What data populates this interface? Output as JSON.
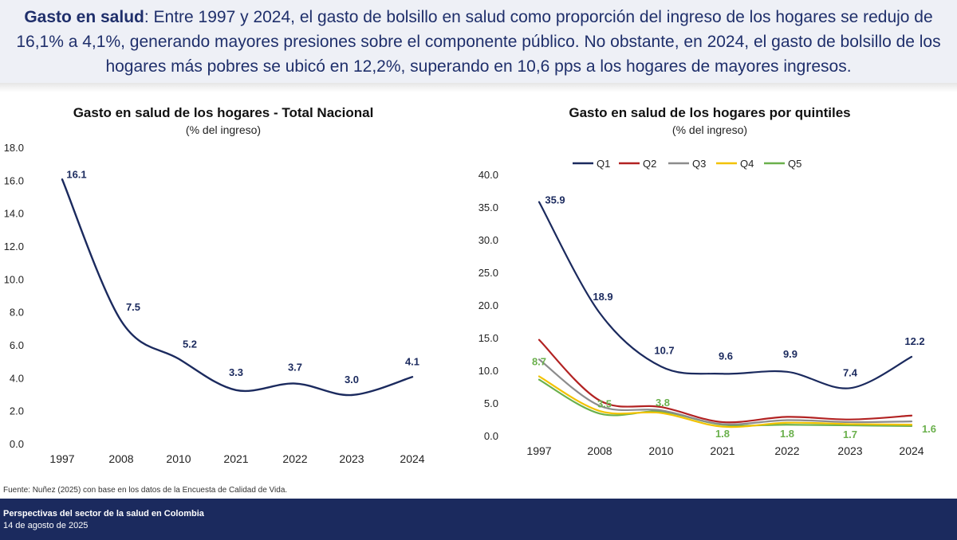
{
  "headline": {
    "bold": "Gasto en salud",
    "text": ": Entre 1997 y 2024, el gasto de bolsillo en salud como proporción del ingreso de los hogares se redujo de 16,1% a 4,1%, generando mayores presiones sobre el componente público. No obstante, en 2024, el gasto de bolsillo de los hogares más pobres se ubicó en 12,2%, superando en 10,6 pps a los hogares de mayores ingresos."
  },
  "source": "Fuente: Nuñez (2025) con base en los datos de la Encuesta de Calidad de Vida.",
  "footer": {
    "title": "Perspectivas del sector de la salud en Colombia",
    "date": "14 de agosto de 2025"
  },
  "chart_data": [
    {
      "type": "line",
      "title": "Gasto en salud de los hogares - Total Nacional",
      "subtitle": "(% del ingreso)",
      "xlabel": "",
      "ylabel": "",
      "categories": [
        "1997",
        "2008",
        "2010",
        "2021",
        "2022",
        "2023",
        "2024"
      ],
      "yticks": [
        "0.0",
        "2.0",
        "4.0",
        "6.0",
        "8.0",
        "10.0",
        "12.0",
        "14.0",
        "16.0",
        "18.0"
      ],
      "ylim": [
        0,
        18
      ],
      "grid": false,
      "series": [
        {
          "name": "Total",
          "color": "#1b2a5e",
          "values": [
            16.1,
            7.5,
            5.2,
            3.3,
            3.7,
            3.0,
            4.1
          ],
          "labels": [
            "16.1",
            "7.5",
            "5.2",
            "3.3",
            "3.7",
            "3.0",
            "4.1"
          ]
        }
      ]
    },
    {
      "type": "line",
      "title": "Gasto en salud de los hogares por quintiles",
      "subtitle": "(% del ingreso)",
      "xlabel": "",
      "ylabel": "",
      "categories": [
        "1997",
        "2008",
        "2010",
        "2021",
        "2022",
        "2023",
        "2024"
      ],
      "yticks": [
        "0.0",
        "5.0",
        "10.0",
        "15.0",
        "20.0",
        "25.0",
        "30.0",
        "35.0",
        "40.0"
      ],
      "ylim": [
        0,
        40
      ],
      "grid": false,
      "legend": "top",
      "series": [
        {
          "name": "Q1",
          "color": "#1b2a5e",
          "values": [
            35.9,
            18.9,
            10.7,
            9.6,
            9.9,
            7.4,
            12.2
          ],
          "labels": [
            "35.9",
            "18.9",
            "10.7",
            "9.6",
            "9.9",
            "7.4",
            "12.2"
          ]
        },
        {
          "name": "Q2",
          "color": "#b22222",
          "values": [
            14.8,
            5.5,
            4.5,
            2.2,
            3.0,
            2.6,
            3.2
          ]
        },
        {
          "name": "Q3",
          "color": "#8c8c8c",
          "values": [
            11.8,
            4.7,
            4.0,
            1.9,
            2.5,
            2.2,
            2.3
          ]
        },
        {
          "name": "Q4",
          "color": "#f2c200",
          "values": [
            9.2,
            3.9,
            3.6,
            1.5,
            2.1,
            1.9,
            1.8
          ]
        },
        {
          "name": "Q5",
          "color": "#6ab04c",
          "values": [
            8.7,
            3.5,
            3.8,
            1.8,
            1.8,
            1.7,
            1.6
          ],
          "labels": [
            "8.7",
            "3.5",
            "3.8",
            "1.8",
            "1.8",
            "1.7",
            "1.6"
          ]
        }
      ]
    }
  ]
}
